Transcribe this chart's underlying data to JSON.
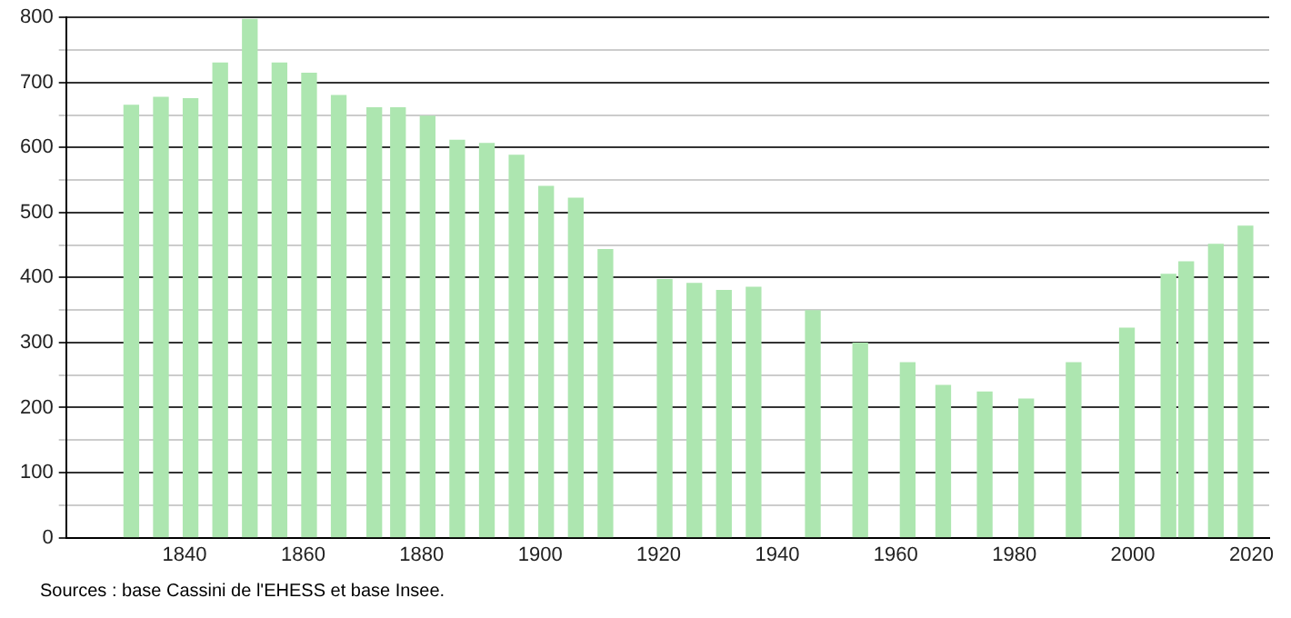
{
  "chart_data": {
    "type": "bar",
    "x": [
      1831,
      1836,
      1841,
      1846,
      1851,
      1856,
      1861,
      1866,
      1872,
      1876,
      1881,
      1886,
      1891,
      1896,
      1901,
      1906,
      1911,
      1921,
      1926,
      1931,
      1936,
      1946,
      1954,
      1962,
      1968,
      1975,
      1982,
      1990,
      1999,
      2006,
      2009,
      2014,
      2019
    ],
    "values": [
      665,
      677,
      675,
      730,
      797,
      730,
      714,
      680,
      661,
      661,
      648,
      611,
      606,
      588,
      540,
      522,
      443,
      397,
      391,
      380,
      385,
      349,
      299,
      269,
      234,
      224,
      213,
      269,
      322,
      405,
      424,
      451,
      479
    ],
    "color": "#ade6b0",
    "xlim": [
      1820,
      2023
    ],
    "xticks": [
      1840,
      1860,
      1880,
      1900,
      1920,
      1940,
      1960,
      1980,
      2000,
      2020
    ],
    "ylim": [
      0,
      800
    ],
    "yticks": [
      0,
      {
        "value": 50,
        "label": null
      },
      100,
      {
        "value": 150,
        "label": null
      },
      200,
      {
        "value": 250,
        "label": null
      },
      300,
      {
        "value": 350,
        "label": null
      },
      400,
      {
        "value": 450,
        "label": null
      },
      500,
      {
        "value": 550,
        "label": null
      },
      600,
      {
        "value": 650,
        "label": null
      },
      700,
      {
        "value": 750,
        "label": null
      },
      800
    ],
    "grid": "y",
    "legend": false,
    "annotations": [
      "Sources : base Cassini de l'EHESS et base Insee."
    ]
  }
}
